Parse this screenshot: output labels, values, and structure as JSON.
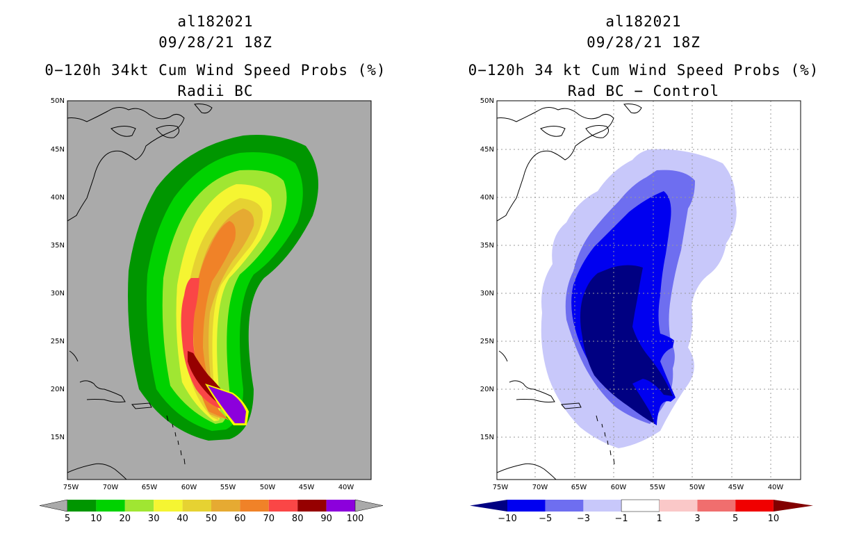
{
  "left": {
    "storm_id": "al182021",
    "datetime": "09/28/21 18Z",
    "product": "0−120h 34kt Cum Wind Speed Probs (%)",
    "subtitle": "Radii BC",
    "colorbar": {
      "labels": [
        "5",
        "10",
        "20",
        "30",
        "40",
        "50",
        "60",
        "70",
        "80",
        "90",
        "100"
      ],
      "colors": [
        "#009600",
        "#00d200",
        "#a0e632",
        "#f5f532",
        "#e6d232",
        "#e6aa32",
        "#f08228",
        "#fa4646",
        "#960000",
        "#8c00dc"
      ]
    }
  },
  "right": {
    "storm_id": "al182021",
    "datetime": "09/28/21 18Z",
    "product": "0−120h 34 kt Cum Wind Speed Probs (%)",
    "subtitle": "Rad BC − Control",
    "colorbar": {
      "labels": [
        "−10",
        "−5",
        "−3",
        "−1",
        "1",
        "3",
        "5",
        "10"
      ],
      "colors": [
        "#000082",
        "#0000f0",
        "#6e6ef0",
        "#c8c8fa",
        "#ffffff",
        "#fac8c8",
        "#f06e6e",
        "#f00000",
        "#820000"
      ]
    }
  },
  "map": {
    "lat_ticks": [
      "50N",
      "45N",
      "40N",
      "35N",
      "30N",
      "25N",
      "20N",
      "15N"
    ],
    "lon_ticks": [
      "75W",
      "70W",
      "65W",
      "60W",
      "55W",
      "50W",
      "45W",
      "40W"
    ]
  }
}
